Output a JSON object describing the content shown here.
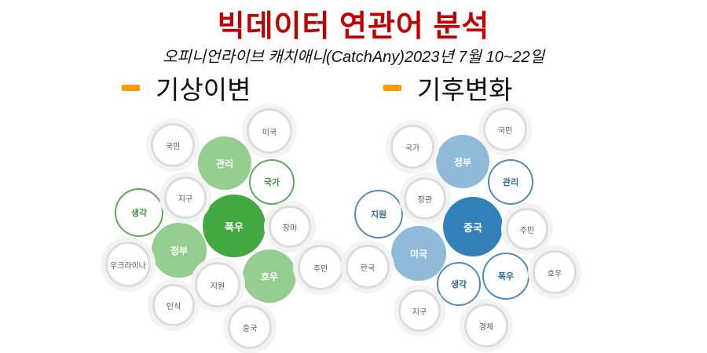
{
  "title": "빅데이터 연관어 분석",
  "subtitle": "오피니언라이브 캐치애니(CatchAny)2023년 7월 10~22일",
  "legend_color": "#ff9900",
  "clusters": [
    {
      "label": "기상이변",
      "colors": {
        "dark": "#43a840",
        "light": "#93cd8f",
        "accent": "#5aaa5a",
        "text": "#3d9a3a"
      },
      "words": [
        {
          "text": "폭우",
          "style": "dark"
        },
        {
          "text": "관리",
          "style": "light"
        },
        {
          "text": "정부",
          "style": "light"
        },
        {
          "text": "호우",
          "style": "light"
        },
        {
          "text": "국가",
          "style": "outline"
        },
        {
          "text": "생각",
          "style": "outline"
        },
        {
          "text": "미국",
          "style": "plain"
        },
        {
          "text": "국민",
          "style": "plain"
        },
        {
          "text": "지구",
          "style": "plain"
        },
        {
          "text": "장마",
          "style": "plain"
        },
        {
          "text": "우크라이나",
          "style": "plain"
        },
        {
          "text": "주민",
          "style": "plain"
        },
        {
          "text": "지원",
          "style": "plain"
        },
        {
          "text": "인식",
          "style": "plain"
        },
        {
          "text": "중국",
          "style": "plain"
        }
      ]
    },
    {
      "label": "기후변화",
      "colors": {
        "dark": "#3380b8",
        "light": "#8fbad9",
        "accent": "#4f8cbc",
        "text": "#2e6da4"
      },
      "words": [
        {
          "text": "중국",
          "style": "dark"
        },
        {
          "text": "정부",
          "style": "light"
        },
        {
          "text": "미국",
          "style": "light"
        },
        {
          "text": "관리",
          "style": "outline"
        },
        {
          "text": "지원",
          "style": "outline"
        },
        {
          "text": "생각",
          "style": "outline"
        },
        {
          "text": "폭우",
          "style": "outline"
        },
        {
          "text": "국민",
          "style": "plain"
        },
        {
          "text": "국가",
          "style": "plain"
        },
        {
          "text": "장관",
          "style": "plain"
        },
        {
          "text": "주민",
          "style": "plain"
        },
        {
          "text": "한국",
          "style": "plain"
        },
        {
          "text": "호우",
          "style": "plain"
        },
        {
          "text": "지구",
          "style": "plain"
        },
        {
          "text": "경제",
          "style": "plain"
        }
      ]
    }
  ]
}
